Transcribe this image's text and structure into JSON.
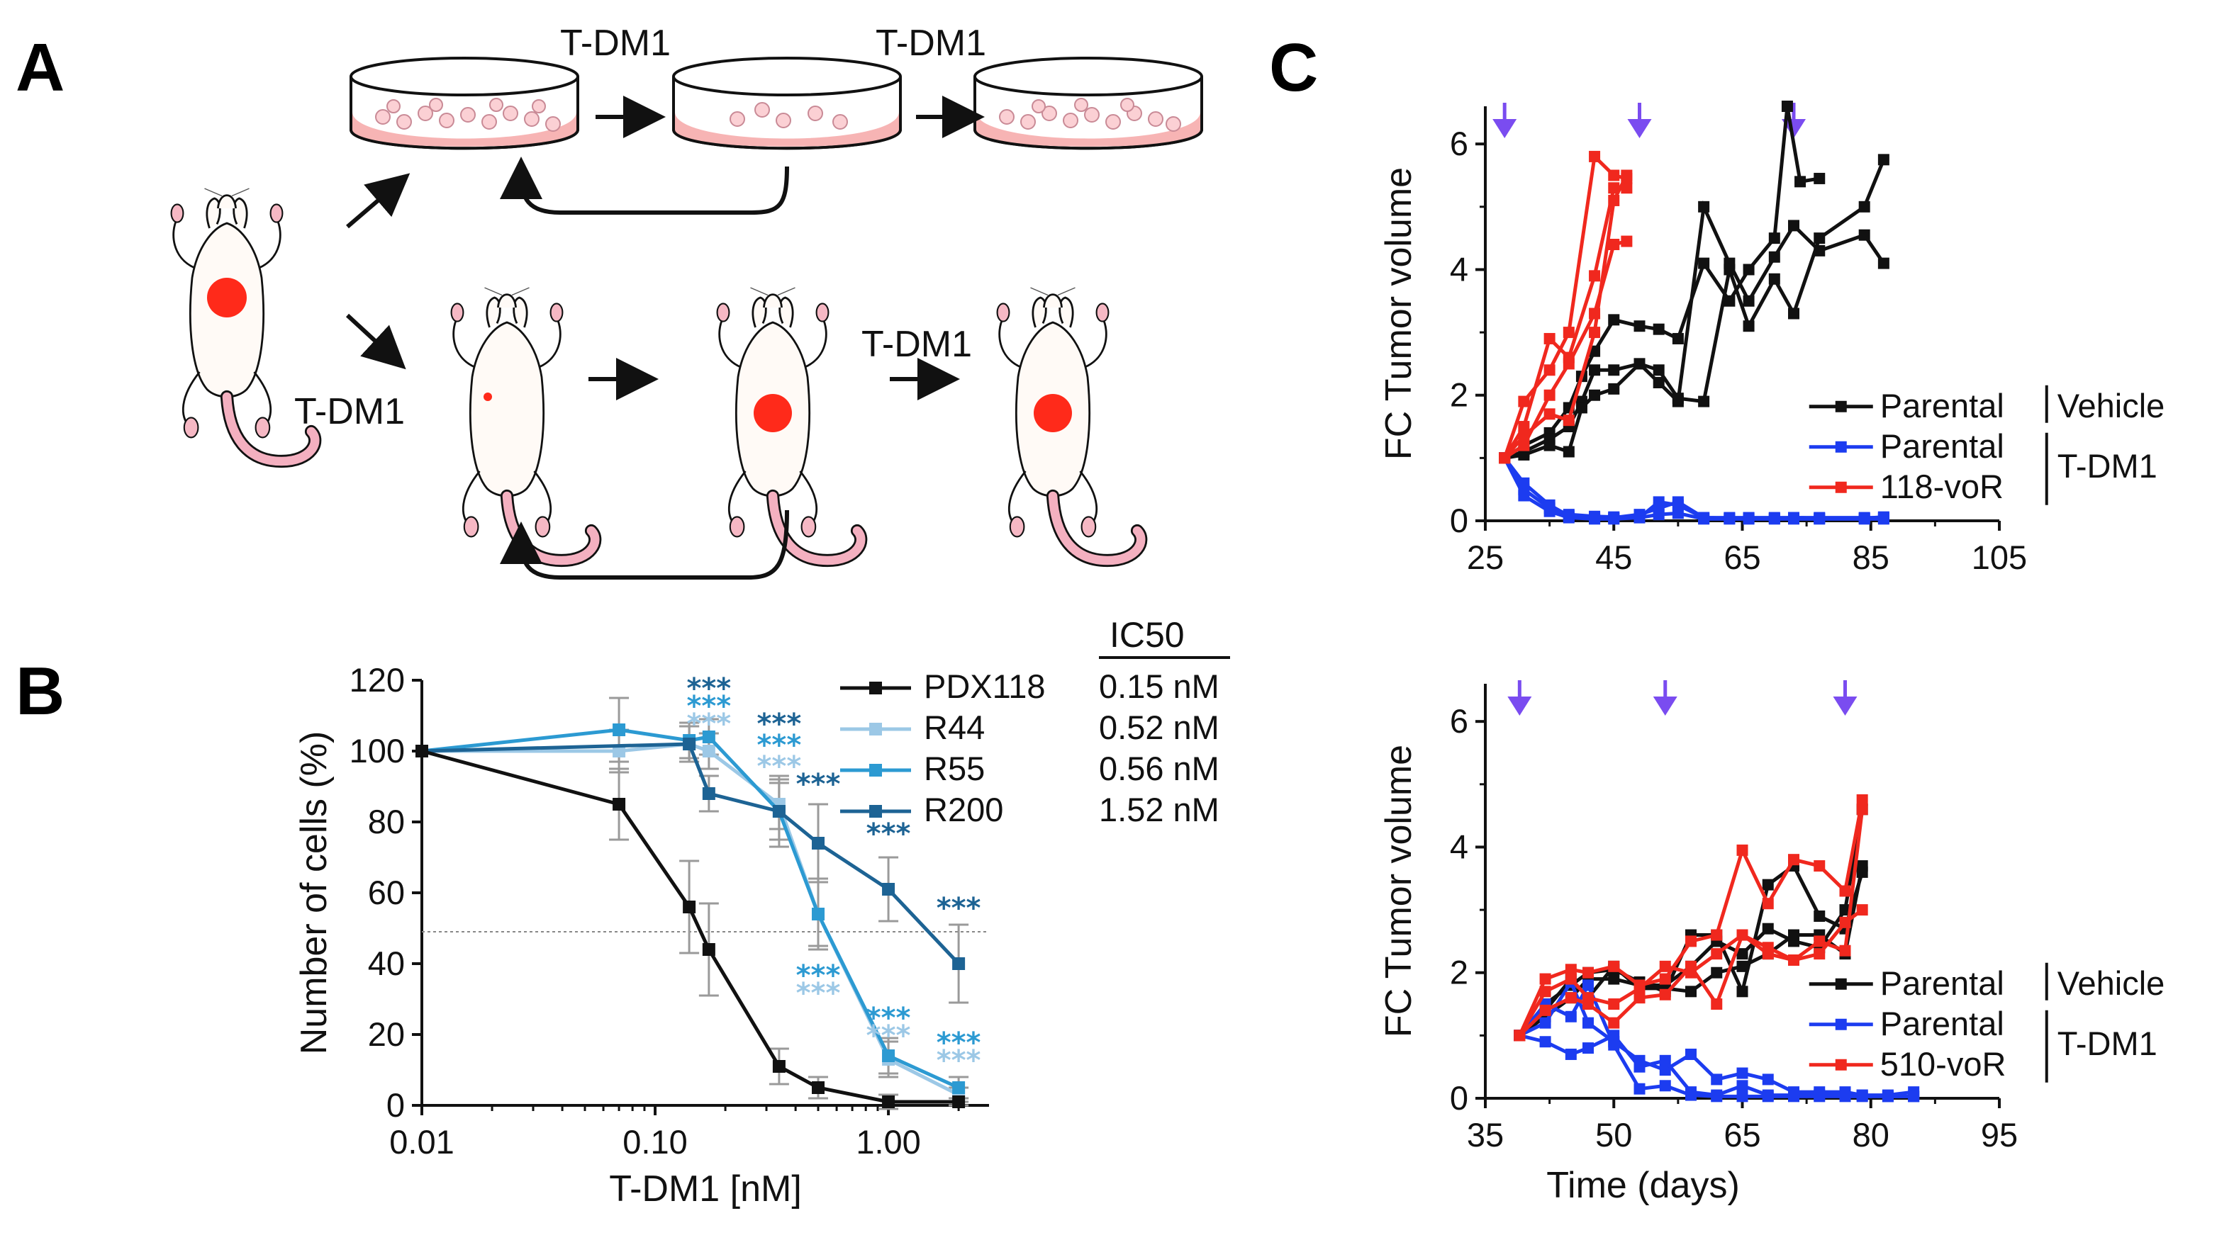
{
  "panels": {
    "a": {
      "label": "A",
      "drug_labels": [
        "T-DM1",
        "T-DM1",
        "T-DM1",
        "T-DM1"
      ]
    },
    "b": {
      "label": "B",
      "ic50_header": "IC50"
    },
    "c": {
      "label": "C"
    }
  },
  "colors": {
    "black": "#111111",
    "pdx118": "#111111",
    "r44": "#9cc8e6",
    "r55": "#2c9ad2",
    "r200": "#1d6394",
    "red": "#f0281e",
    "blue": "#1c3cf0",
    "arrow": "#7a4cf0",
    "tumor": "#ff2a1a",
    "dish_fill": "#f7b4b4",
    "grey_err": "#9a9a9a"
  },
  "chart_data": [
    {
      "id": "B",
      "type": "line",
      "xscale": "log",
      "x_tick_labels": [
        "0.01",
        "0.10",
        "1.00"
      ],
      "x_ticks": [
        0.01,
        0.1,
        1
      ],
      "xlim": [
        0.01,
        2.7
      ],
      "ylim": [
        0,
        120
      ],
      "y_ticks": [
        0,
        20,
        40,
        60,
        80,
        100,
        120
      ],
      "xlabel": "T-DM1 [nM]",
      "ylabel": "Number of cells (%)",
      "reference_line": 49,
      "series": [
        {
          "name": "PDX118",
          "color_key": "pdx118",
          "ic50": "0.15 nM",
          "x": [
            0.01,
            0.07,
            0.14,
            0.17,
            0.34,
            0.5,
            1.0,
            2.0
          ],
          "y": [
            100,
            85,
            56,
            44,
            11,
            5,
            1,
            1
          ],
          "err": [
            0,
            10,
            13,
            13,
            5,
            3,
            2,
            1
          ]
        },
        {
          "name": "R44",
          "color_key": "r44",
          "ic50": "0.52 nM",
          "x": [
            0.01,
            0.07,
            0.14,
            0.17,
            0.34,
            0.5,
            1.0,
            2.0
          ],
          "y": [
            100,
            100,
            102,
            100,
            85,
            54,
            13,
            3
          ],
          "err": [
            0,
            6,
            5,
            5,
            7,
            9,
            5,
            2
          ]
        },
        {
          "name": "R55",
          "color_key": "r55",
          "ic50": "0.56 nM",
          "x": [
            0.01,
            0.07,
            0.14,
            0.17,
            0.34,
            0.5,
            1.0,
            2.0
          ],
          "y": [
            100,
            106,
            103,
            104,
            83,
            54,
            14,
            5
          ],
          "err": [
            0,
            9,
            5,
            5,
            8,
            10,
            5,
            3
          ]
        },
        {
          "name": "R200",
          "color_key": "r200",
          "ic50": "1.52 nM",
          "x": [
            0.01,
            0.14,
            0.17,
            0.34,
            0.5,
            1.0,
            2.0
          ],
          "y": [
            100,
            102,
            88,
            83,
            74,
            61,
            40
          ],
          "err": [
            0,
            5,
            5,
            10,
            11,
            9,
            11
          ]
        }
      ],
      "annotations": [
        {
          "x": 0.17,
          "y": 115,
          "text": "***",
          "color_key": "r200"
        },
        {
          "x": 0.17,
          "y": 110,
          "text": "***",
          "color_key": "r55"
        },
        {
          "x": 0.17,
          "y": 105,
          "text": "***",
          "color_key": "r44"
        },
        {
          "x": 0.34,
          "y": 105,
          "text": "***",
          "color_key": "r200"
        },
        {
          "x": 0.34,
          "y": 99,
          "text": "***",
          "color_key": "r55"
        },
        {
          "x": 0.34,
          "y": 93,
          "text": "***",
          "color_key": "r44"
        },
        {
          "x": 0.5,
          "y": 88,
          "text": "***",
          "color_key": "r200"
        },
        {
          "x": 1.0,
          "y": 74,
          "text": "***",
          "color_key": "r200"
        },
        {
          "x": 2.0,
          "y": 53,
          "text": "***",
          "color_key": "r200"
        },
        {
          "x": 0.5,
          "y": 34,
          "text": "***",
          "color_key": "r55"
        },
        {
          "x": 0.5,
          "y": 29,
          "text": "***",
          "color_key": "r44"
        },
        {
          "x": 1.0,
          "y": 22,
          "text": "***",
          "color_key": "r55"
        },
        {
          "x": 1.0,
          "y": 17,
          "text": "***",
          "color_key": "r44"
        },
        {
          "x": 2.0,
          "y": 15,
          "text": "***",
          "color_key": "r55"
        },
        {
          "x": 2.0,
          "y": 10,
          "text": "***",
          "color_key": "r44"
        }
      ]
    },
    {
      "id": "C-top",
      "type": "line",
      "xlim": [
        25,
        105
      ],
      "x_ticks": [
        25,
        45,
        65,
        85,
        105
      ],
      "ylim": [
        0,
        6.6
      ],
      "y_ticks": [
        0,
        2,
        4,
        6
      ],
      "xlabel": "",
      "ylabel": "FC Tumor volume",
      "treatment_arrows_x": [
        28,
        49,
        73
      ],
      "legend": {
        "entries": [
          {
            "label": "Parental",
            "color_key": "black"
          },
          {
            "label": "Parental",
            "color_key": "blue"
          },
          {
            "label": "118-voR",
            "color_key": "red"
          }
        ],
        "groups": [
          "Vehicle",
          "T-DM1"
        ]
      },
      "series": [
        {
          "name": "Parental Vehicle 1",
          "color_key": "black",
          "x": [
            28,
            31,
            35,
            38,
            40,
            42,
            45,
            49,
            52,
            55,
            59,
            63,
            66,
            70,
            72,
            74,
            77
          ],
          "y": [
            1,
            1.2,
            1.4,
            1.8,
            2.3,
            2.7,
            3.2,
            3.1,
            3.05,
            2.9,
            4.1,
            3.5,
            4.0,
            4.5,
            6.6,
            5.4,
            5.45
          ]
        },
        {
          "name": "Parental Vehicle 2",
          "color_key": "black",
          "x": [
            28,
            31,
            35,
            38,
            40,
            42,
            45,
            49,
            52,
            55,
            59,
            63,
            66,
            70,
            73,
            77,
            84,
            87
          ],
          "y": [
            1,
            1.1,
            1.3,
            1.5,
            1.9,
            2.4,
            2.4,
            2.5,
            2.2,
            1.9,
            5.0,
            4.1,
            3.5,
            4.2,
            4.7,
            4.3,
            4.55,
            4.1
          ]
        },
        {
          "name": "Parental Vehicle 3",
          "color_key": "black",
          "x": [
            28,
            31,
            35,
            38,
            40,
            42,
            45,
            49,
            52,
            55,
            59,
            63,
            66,
            70,
            73,
            77,
            84,
            87
          ],
          "y": [
            1,
            1.05,
            1.2,
            1.1,
            1.8,
            2.0,
            2.1,
            2.5,
            2.4,
            1.95,
            1.9,
            4.0,
            3.1,
            3.85,
            3.3,
            4.5,
            5.0,
            5.75
          ]
        },
        {
          "name": "Parental T-DM1 1",
          "color_key": "blue",
          "x": [
            28,
            31,
            35,
            38,
            42,
            45,
            49,
            52,
            55,
            59,
            63,
            66,
            70,
            73,
            77,
            84,
            87
          ],
          "y": [
            1,
            0.5,
            0.2,
            0.1,
            0.07,
            0.06,
            0.05,
            0.3,
            0.25,
            0.05,
            0.05,
            0.05,
            0.05,
            0.05,
            0.05,
            0.05,
            0.05
          ]
        },
        {
          "name": "Parental T-DM1 2",
          "color_key": "blue",
          "x": [
            28,
            31,
            35,
            38,
            42,
            45,
            49,
            52,
            55,
            59,
            63,
            66,
            70,
            73,
            77,
            84,
            87
          ],
          "y": [
            1,
            0.6,
            0.25,
            0.08,
            0.05,
            0.05,
            0.1,
            0.2,
            0.3,
            0.05,
            0.04,
            0.04,
            0.04,
            0.05,
            0.04,
            0.04,
            0.06
          ]
        },
        {
          "name": "Parental T-DM1 3",
          "color_key": "blue",
          "x": [
            28,
            31,
            35,
            38,
            42,
            45,
            49,
            52,
            55,
            59,
            63,
            66,
            70,
            73,
            77,
            84,
            87
          ],
          "y": [
            1,
            0.4,
            0.15,
            0.05,
            0.03,
            0.03,
            0.05,
            0.1,
            0.12,
            0.03,
            0.03,
            0.03,
            0.03,
            0.03,
            0.03,
            0.03,
            0.03
          ]
        },
        {
          "name": "118-voR 1",
          "color_key": "red",
          "x": [
            28,
            31,
            35,
            38,
            42,
            45,
            47
          ],
          "y": [
            1,
            1.9,
            2.4,
            3.0,
            5.8,
            5.5,
            5.45
          ]
        },
        {
          "name": "118-voR 2",
          "color_key": "red",
          "x": [
            28,
            31,
            35,
            38,
            42,
            45,
            47
          ],
          "y": [
            1,
            1.5,
            2.9,
            2.6,
            3.9,
            5.3,
            5.3
          ]
        },
        {
          "name": "118-voR 3",
          "color_key": "red",
          "x": [
            28,
            31,
            35,
            38,
            42,
            45,
            47
          ],
          "y": [
            1,
            1.2,
            2.0,
            2.5,
            3.3,
            4.4,
            4.45
          ]
        },
        {
          "name": "118-voR 4",
          "color_key": "red",
          "x": [
            28,
            31,
            35,
            38,
            42,
            45,
            47
          ],
          "y": [
            1,
            1.35,
            1.7,
            1.6,
            3.0,
            5.1,
            5.5
          ]
        }
      ]
    },
    {
      "id": "C-bottom",
      "type": "line",
      "xlim": [
        35,
        95
      ],
      "x_ticks": [
        35,
        50,
        65,
        80,
        95
      ],
      "ylim": [
        0,
        6.6
      ],
      "y_ticks": [
        0,
        2,
        4,
        6
      ],
      "xlabel": "Time (days)",
      "ylabel": "FC Tumor volume",
      "treatment_arrows_x": [
        39,
        56,
        77
      ],
      "legend": {
        "entries": [
          {
            "label": "Parental",
            "color_key": "black"
          },
          {
            "label": "Parental",
            "color_key": "blue"
          },
          {
            "label": "510-voR",
            "color_key": "red"
          }
        ],
        "groups": [
          "Vehicle",
          "T-DM1"
        ]
      },
      "series": [
        {
          "name": "Parental Vehicle 1",
          "color_key": "black",
          "x": [
            39,
            42,
            45,
            47,
            50,
            53,
            56,
            59,
            62,
            65,
            68,
            71,
            74,
            77,
            79
          ],
          "y": [
            1,
            1.5,
            1.8,
            2.0,
            2.05,
            1.85,
            1.7,
            2.6,
            2.6,
            1.7,
            3.4,
            3.7,
            2.9,
            2.7,
            3.6
          ]
        },
        {
          "name": "Parental Vehicle 2",
          "color_key": "black",
          "x": [
            39,
            42,
            45,
            47,
            50,
            53,
            56,
            59,
            62,
            65,
            68,
            71,
            74,
            77,
            79
          ],
          "y": [
            1,
            1.3,
            1.6,
            1.9,
            1.9,
            1.8,
            1.8,
            2.1,
            2.5,
            2.3,
            2.7,
            2.5,
            2.4,
            3.0,
            4.6
          ]
        },
        {
          "name": "Parental Vehicle 3",
          "color_key": "black",
          "x": [
            39,
            42,
            45,
            47,
            50,
            53,
            56,
            59,
            62,
            65,
            68,
            71,
            74,
            77,
            79
          ],
          "y": [
            1,
            1.4,
            1.9,
            1.6,
            2.1,
            1.75,
            1.75,
            1.7,
            2.0,
            2.1,
            2.3,
            2.6,
            2.6,
            2.3,
            3.7
          ]
        },
        {
          "name": "Parental T-DM1 1",
          "color_key": "blue",
          "x": [
            39,
            42,
            45,
            47,
            50,
            53,
            56,
            59,
            62,
            65,
            68,
            71,
            74,
            77,
            79,
            82,
            85
          ],
          "y": [
            1,
            1.2,
            1.85,
            1.2,
            0.9,
            0.6,
            0.45,
            0.7,
            0.3,
            0.4,
            0.3,
            0.1,
            0.1,
            0.1,
            0.05,
            0.05,
            0.1
          ]
        },
        {
          "name": "Parental T-DM1 2",
          "color_key": "blue",
          "x": [
            39,
            42,
            45,
            47,
            50,
            53,
            56,
            59,
            62,
            65,
            68,
            71,
            74,
            77,
            79,
            82,
            85
          ],
          "y": [
            1,
            0.9,
            0.7,
            0.8,
            1.0,
            0.5,
            0.6,
            0.1,
            0.05,
            0.2,
            0.05,
            0.05,
            0.05,
            0.05,
            0.05,
            0.03,
            0.03
          ]
        },
        {
          "name": "Parental T-DM1 3",
          "color_key": "blue",
          "x": [
            39,
            42,
            45,
            47,
            50,
            53,
            56,
            59,
            62,
            65,
            68,
            71,
            74,
            77,
            79,
            82,
            85
          ],
          "y": [
            1,
            1.5,
            1.3,
            1.8,
            0.85,
            0.15,
            0.2,
            0.05,
            0.03,
            0.03,
            0.03,
            0.03,
            0.03,
            0.03,
            0.03,
            0.03,
            0.03
          ]
        },
        {
          "name": "510-voR 1",
          "color_key": "red",
          "x": [
            39,
            42,
            45,
            47,
            50,
            53,
            56,
            59,
            62,
            65,
            68,
            71,
            74,
            77,
            79
          ],
          "y": [
            1,
            1.9,
            2.05,
            2.0,
            2.1,
            1.8,
            1.9,
            2.5,
            2.6,
            3.95,
            3.1,
            3.8,
            3.7,
            3.3,
            4.75
          ]
        },
        {
          "name": "510-voR 2",
          "color_key": "red",
          "x": [
            39,
            42,
            45,
            47,
            50,
            53,
            56,
            59,
            62,
            65,
            68,
            71,
            74,
            77,
            79
          ],
          "y": [
            1,
            1.7,
            1.9,
            1.6,
            1.5,
            1.75,
            2.1,
            2.0,
            2.3,
            2.6,
            2.4,
            2.2,
            2.5,
            2.35,
            4.6
          ]
        },
        {
          "name": "510-voR 3",
          "color_key": "red",
          "x": [
            39,
            42,
            45,
            47,
            50,
            53,
            56,
            59,
            62,
            65,
            68,
            71,
            74,
            77,
            79
          ],
          "y": [
            1,
            1.4,
            1.6,
            1.5,
            1.2,
            1.6,
            1.65,
            2.1,
            1.5,
            2.6,
            2.3,
            2.2,
            2.3,
            2.8,
            3.0
          ]
        }
      ]
    }
  ]
}
